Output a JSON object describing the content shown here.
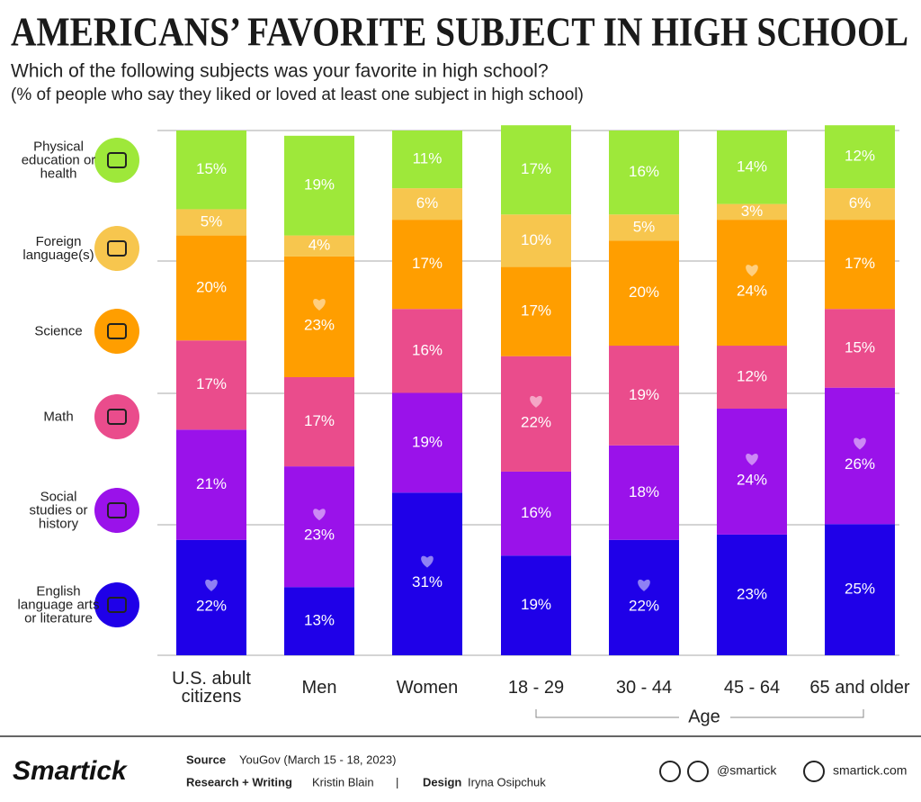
{
  "chart_data": {
    "type": "stacked_bar",
    "title": "AMERICANS’ FAVORITE SUBJECT IN HIGH SCHOOL",
    "subtitle": "Which of the following subjects was your favorite in high school?",
    "note": "(% of people who say they liked or loved at least one subject in high school)",
    "categories": [
      "U.S. abult citizens",
      "Men",
      "Women",
      "18 - 29",
      "30 - 44",
      "45 - 64",
      "65 and older"
    ],
    "group_label": "Age",
    "ylim": [
      0,
      100
    ],
    "series": [
      {
        "name": "English language arts or literature",
        "color": "#1f00e8",
        "values": [
          22,
          13,
          31,
          19,
          22,
          23,
          25
        ],
        "value_labels": [
          "22%",
          "13%",
          "31%",
          "19%",
          "22%",
          "23%",
          "25%"
        ]
      },
      {
        "name": "Social studies or history",
        "color": "#9a12ea",
        "values": [
          21,
          23,
          19,
          16,
          18,
          24,
          26
        ],
        "value_labels": [
          "21%",
          "23%",
          "19%",
          "16%",
          "18%",
          "24%",
          "26%"
        ]
      },
      {
        "name": "Math",
        "color": "#ea4c8c",
        "values": [
          17,
          17,
          16,
          22,
          19,
          12,
          15
        ],
        "value_labels": [
          "17%",
          "17%",
          "16%",
          "22%",
          "19%",
          "12%",
          "15%"
        ]
      },
      {
        "name": "Science",
        "color": "#ff9e00",
        "values": [
          20,
          23,
          17,
          17,
          20,
          24,
          17
        ],
        "value_labels": [
          "20%",
          "23%",
          "17%",
          "17%",
          "20%",
          "24%",
          "17%"
        ]
      },
      {
        "name": "Foreign language(s)",
        "color": "#f7c64e",
        "values": [
          5,
          4,
          6,
          10,
          5,
          3,
          6
        ],
        "value_labels": [
          "5%",
          "4%",
          "6%",
          "10%",
          "5%",
          "3%",
          "6%"
        ]
      },
      {
        "name": "Physical education or health",
        "color": "#9ee83a",
        "values": [
          15,
          19,
          11,
          17,
          16,
          14,
          12
        ],
        "value_labels": [
          "15%",
          "19%",
          "11%",
          "17%",
          "16%",
          "14%",
          "12%"
        ]
      }
    ]
  },
  "footer": {
    "brand": "Smartick",
    "source_label": "Source",
    "source": "YouGov (March 15 - 18, 2023)",
    "research_label": "Research + Writing",
    "research": "Kristin Blain",
    "separator": "|",
    "design_label": "Design",
    "design": "Iryna Osipchuk",
    "social": "@smartick",
    "website": "smartick.com"
  }
}
